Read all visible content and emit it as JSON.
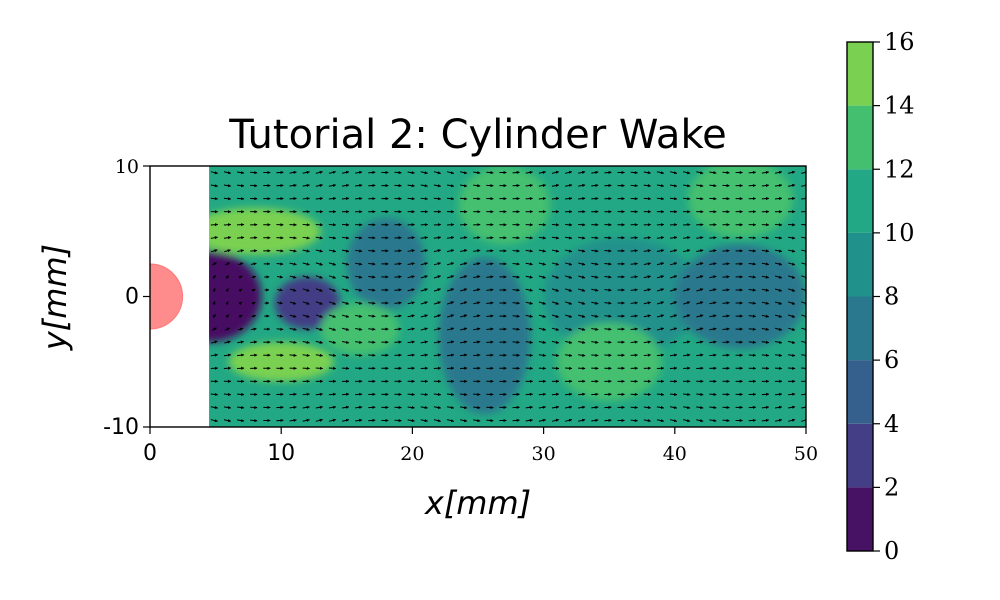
{
  "chart_data": {
    "type": "heatmap",
    "title": "Tutorial 2: Cylinder Wake",
    "xlabel": "x[mm]",
    "ylabel": "y[mm]",
    "xlim": [
      0,
      50
    ],
    "ylim": [
      -10,
      10
    ],
    "x_ticks": [
      "0",
      "10",
      "20",
      "30",
      "40",
      "50"
    ],
    "y_ticks": [
      "10",
      "0",
      "-10"
    ],
    "grid": false,
    "cylinder": {
      "center_x": 0,
      "center_y": 0,
      "radius": 2.5,
      "color": "#ff7f7f"
    },
    "data_region_x": [
      4.5,
      50
    ],
    "colorbar": {
      "ticks": [
        "0",
        "2",
        "4",
        "6",
        "8",
        "10",
        "12",
        "14",
        "16"
      ],
      "levels": [
        0,
        2,
        4,
        6,
        8,
        10,
        12,
        14,
        16
      ],
      "colors": [
        "#471164",
        "#433e85",
        "#35608d",
        "#2a788e",
        "#21918c",
        "#22a884",
        "#44bf70",
        "#7ad151",
        "#d2e21b"
      ]
    },
    "speed_features": [
      {
        "x": 4.5,
        "y": 0,
        "rx": 4.0,
        "ry": 3.5,
        "value": 0.5
      },
      {
        "x": 12,
        "y": -0.5,
        "rx": 2.5,
        "ry": 2.0,
        "value": 3
      },
      {
        "x": 8,
        "y": 5,
        "rx": 5.0,
        "ry": 1.8,
        "value": 15
      },
      {
        "x": 10,
        "y": -5,
        "rx": 4.0,
        "ry": 1.5,
        "value": 14
      },
      {
        "x": 18,
        "y": 2.5,
        "rx": 3.0,
        "ry": 3.5,
        "value": 7
      },
      {
        "x": 25.5,
        "y": -3,
        "rx": 3.5,
        "ry": 6.0,
        "value": 6
      },
      {
        "x": 36,
        "y": 0,
        "rx": 6.0,
        "ry": 4.5,
        "value": 8
      },
      {
        "x": 45,
        "y": 0,
        "rx": 5.0,
        "ry": 4.0,
        "value": 7
      },
      {
        "x": 27,
        "y": 7,
        "rx": 3.5,
        "ry": 3.0,
        "value": 13
      },
      {
        "x": 35,
        "y": -5,
        "rx": 4.0,
        "ry": 3.0,
        "value": 13
      },
      {
        "x": 45,
        "y": 7.5,
        "rx": 4.0,
        "ry": 3.0,
        "value": 13
      },
      {
        "x": 16,
        "y": -2.5,
        "rx": 3.0,
        "ry": 2.0,
        "value": 13
      }
    ]
  }
}
